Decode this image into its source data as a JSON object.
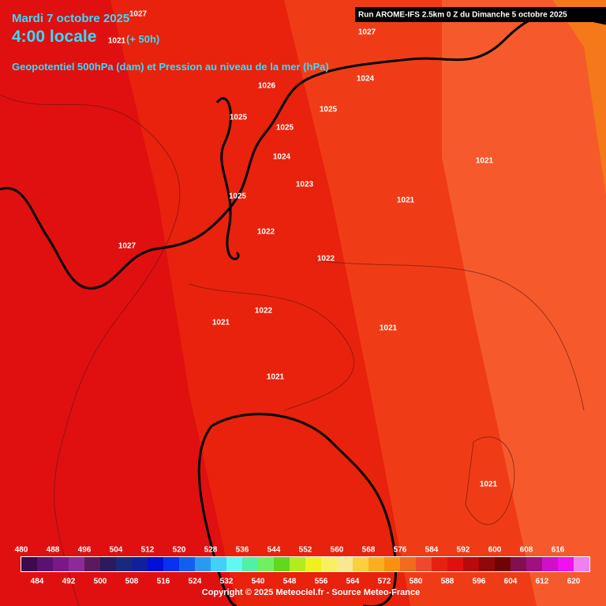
{
  "header": {
    "date": "Mardi 7 octobre 2025",
    "time": "4:00 locale",
    "lead": "(+ 50h)",
    "subtitle": "Geopotentiel 500hPa (dam) et Pression au niveau de la mer (hPa)",
    "run": "Run AROME-IFS 2.5km 0 Z du Dimanche 5 octobre 2025"
  },
  "isobar_labels": [
    "1027",
    "1021",
    "1027",
    "1024",
    "1026",
    "1025",
    "1025",
    "1025",
    "1024",
    "1023",
    "1021",
    "1021",
    "1025",
    "1022",
    "1027",
    "1022",
    "1021",
    "1022",
    "1021",
    "1021",
    "1021"
  ],
  "scale": {
    "items": [
      {
        "value": 480,
        "color": "#3c0a4e"
      },
      {
        "value": 484,
        "color": "#5a1270"
      },
      {
        "value": 488,
        "color": "#7a1888"
      },
      {
        "value": 492,
        "color": "#8c2a98"
      },
      {
        "value": 496,
        "color": "#5c1a5e"
      },
      {
        "value": 500,
        "color": "#2a1a5e"
      },
      {
        "value": 504,
        "color": "#1a2a7a"
      },
      {
        "value": 508,
        "color": "#10209a"
      },
      {
        "value": 512,
        "color": "#0010d8"
      },
      {
        "value": 516,
        "color": "#0a30f0"
      },
      {
        "value": 520,
        "color": "#1060f0"
      },
      {
        "value": 524,
        "color": "#2a9af0"
      },
      {
        "value": 528,
        "color": "#40d0f8"
      },
      {
        "value": 532,
        "color": "#60f8f0"
      },
      {
        "value": 536,
        "color": "#50f0a8"
      },
      {
        "value": 540,
        "color": "#70f060"
      },
      {
        "value": 544,
        "color": "#60d820"
      },
      {
        "value": 548,
        "color": "#b0ec20"
      },
      {
        "value": 552,
        "color": "#f0f020"
      },
      {
        "value": 556,
        "color": "#f8f060"
      },
      {
        "value": 560,
        "color": "#f8e890"
      },
      {
        "value": 564,
        "color": "#f8d040"
      },
      {
        "value": 568,
        "color": "#f8b020"
      },
      {
        "value": 572,
        "color": "#f89010"
      },
      {
        "value": 576,
        "color": "#f06a20"
      },
      {
        "value": 580,
        "color": "#f04830"
      },
      {
        "value": 584,
        "color": "#e82010"
      },
      {
        "value": 588,
        "color": "#e01010"
      },
      {
        "value": 592,
        "color": "#b80a0a"
      },
      {
        "value": 596,
        "color": "#900808"
      },
      {
        "value": 600,
        "color": "#700404"
      },
      {
        "value": 604,
        "color": "#801050"
      },
      {
        "value": 608,
        "color": "#a01080"
      },
      {
        "value": 612,
        "color": "#d010c8"
      },
      {
        "value": 616,
        "color": "#f010f0"
      },
      {
        "value": 620,
        "color": "#f080f0"
      }
    ]
  },
  "copyright": "Copyright © 2025 Meteociel.fr - Source Meteo-France"
}
